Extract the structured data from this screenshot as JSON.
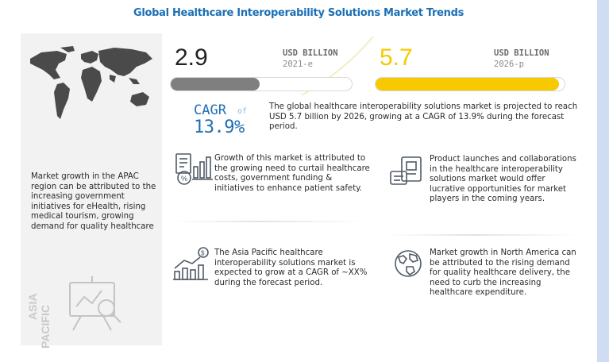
{
  "title": "Global Healthcare Interoperability Solutions Market Trends",
  "left_panel": {
    "text": "Market growth in the APAC region can be attributed to the increasing government initiatives for eHealth, rising medical tourism, growing demand for quality healthcare",
    "region_label_line1": "ASIA",
    "region_label_line2": "PACIFIC"
  },
  "market_size": {
    "current": {
      "value": "2.9",
      "unit": "USD BILLION",
      "year": "2021-e",
      "bar_fill_fraction": 0.49,
      "bar_color": "#7f7f7f"
    },
    "projected": {
      "value": "5.7",
      "unit": "USD BILLION",
      "year": "2026-p",
      "bar_fill_fraction": 0.97,
      "bar_color": "#f7c900"
    }
  },
  "cagr": {
    "label": "CAGR",
    "of": "of",
    "value": "13.9%",
    "summary": "The global healthcare interoperability solutions market is projected to reach USD 5.7 billion by 2026, growing at a CAGR of 13.9% during the forecast period."
  },
  "insights": [
    {
      "icon": "healthcare-cost-icon",
      "text": "Growth of this market is attributed to the growing need to curtail healthcare costs, government funding & initiatives to enhance patient safety."
    },
    {
      "icon": "product-launch-icon",
      "text": "Product launches and collaborations in the healthcare interoperability solutions market would offer lucrative opportunities for market players in the coming years."
    },
    {
      "icon": "growth-chart-icon",
      "text": "The Asia Pacific healthcare interoperability solutions market is expected to grow at a CAGR of ~XX% during the forecast period."
    },
    {
      "icon": "globe-icon",
      "text": "Market growth in North America can be attributed to the rising demand for quality healthcare delivery, the need to curb the increasing healthcare expenditure."
    }
  ],
  "colors": {
    "accent_blue": "#1c6fb5",
    "highlight_yellow": "#f7c900",
    "neutral_gray": "#7f7f7f"
  }
}
